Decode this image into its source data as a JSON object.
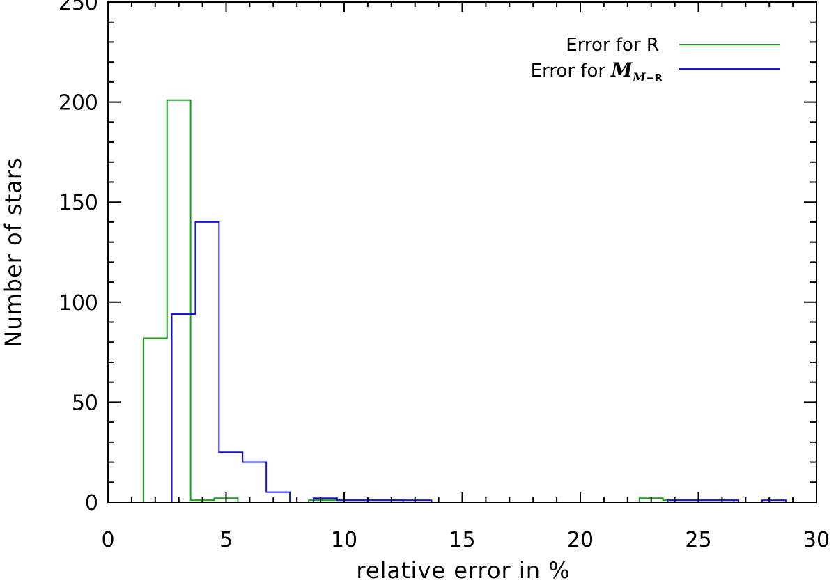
{
  "chart_data": {
    "type": "histogram",
    "xlabel": "relative error in %",
    "ylabel": "Number of stars",
    "xlim": [
      0,
      30
    ],
    "ylim": [
      0,
      250
    ],
    "x_major_ticks": [
      0,
      5,
      10,
      15,
      20,
      25,
      30
    ],
    "x_minor_step": 1,
    "y_major_ticks": [
      0,
      50,
      100,
      150,
      200,
      250
    ],
    "y_minor_step": 10,
    "grid": false,
    "legend_position": "top-right",
    "series": [
      {
        "name": "Error for R",
        "color": "#1aa01a",
        "bins": [
          {
            "x0": 1.5,
            "x1": 2.5,
            "count": 82
          },
          {
            "x0": 2.5,
            "x1": 3.5,
            "count": 201
          },
          {
            "x0": 3.5,
            "x1": 4.5,
            "count": 1
          },
          {
            "x0": 4.5,
            "x1": 5.5,
            "count": 2
          },
          {
            "x0": 5.5,
            "x1": 8.5,
            "count": 0
          },
          {
            "x0": 8.5,
            "x1": 9.5,
            "count": 1
          },
          {
            "x0": 9.5,
            "x1": 12.5,
            "count": 1
          },
          {
            "x0": 12.5,
            "x1": 22.5,
            "count": 0
          },
          {
            "x0": 22.5,
            "x1": 23.5,
            "count": 2
          },
          {
            "x0": 23.5,
            "x1": 26.5,
            "count": 1
          }
        ]
      },
      {
        "name": "Error for",
        "name_symbol": "M",
        "name_subscript_symbol": "M",
        "name_subscript_tail": "−R",
        "color": "#1414e6",
        "bins": [
          {
            "x0": 2.7,
            "x1": 3.7,
            "count": 94
          },
          {
            "x0": 3.7,
            "x1": 4.7,
            "count": 140
          },
          {
            "x0": 4.7,
            "x1": 5.7,
            "count": 25
          },
          {
            "x0": 5.7,
            "x1": 6.7,
            "count": 20
          },
          {
            "x0": 6.7,
            "x1": 7.7,
            "count": 5
          },
          {
            "x0": 7.7,
            "x1": 8.7,
            "count": 0
          },
          {
            "x0": 8.7,
            "x1": 9.7,
            "count": 2
          },
          {
            "x0": 9.7,
            "x1": 13.7,
            "count": 1
          },
          {
            "x0": 13.7,
            "x1": 23.7,
            "count": 0
          },
          {
            "x0": 23.7,
            "x1": 26.7,
            "count": 1
          },
          {
            "x0": 26.7,
            "x1": 27.7,
            "count": 0
          },
          {
            "x0": 27.7,
            "x1": 28.7,
            "count": 1
          }
        ]
      }
    ]
  }
}
